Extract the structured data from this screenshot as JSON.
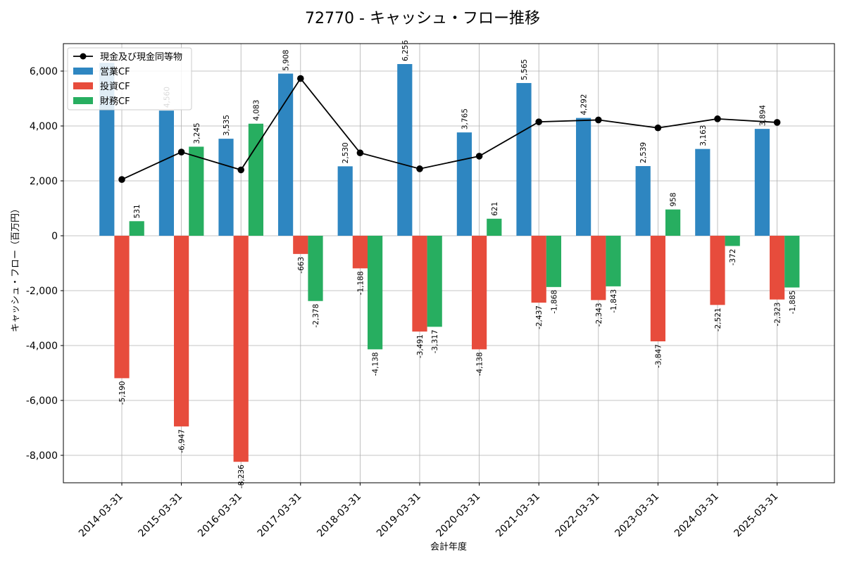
{
  "chart_data": {
    "type": "bar",
    "title": "72770 - キャッシュ・フロー推移",
    "xlabel": "会計年度",
    "ylabel": "キャッシュ・フロー（百万円）",
    "ylim": [
      -9000,
      7000
    ],
    "yticks": [
      6000,
      4000,
      2000,
      0,
      -2000,
      -4000,
      -6000,
      -8000
    ],
    "ytick_labels": [
      "6,000",
      "4,000",
      "2,000",
      "0",
      "-2,000",
      "-4,000",
      "-6,000",
      "-8,000"
    ],
    "grid": true,
    "legend_position": "top-left",
    "categories": [
      "2014-03-31",
      "2015-03-31",
      "2016-03-31",
      "2017-03-31",
      "2018-03-31",
      "2019-03-31",
      "2020-03-31",
      "2021-03-31",
      "2022-03-31",
      "2023-03-31",
      "2024-03-31",
      "2025-03-31"
    ],
    "series": [
      {
        "name": "営業CF",
        "kind": "bar",
        "color": "#2e86c1",
        "values": [
          6300,
          4560,
          3535,
          5908,
          2530,
          6256,
          3765,
          5565,
          4292,
          2539,
          3163,
          3894
        ],
        "labels": [
          "",
          "4,560",
          "3,535",
          "5,908",
          "2,530",
          "6,256",
          "3,765",
          "5,565",
          "4,292",
          "2,539",
          "3,163",
          "3,894"
        ]
      },
      {
        "name": "投資CF",
        "kind": "bar",
        "color": "#e74c3c",
        "values": [
          -5190,
          -6947,
          -8236,
          -663,
          -1188,
          -3491,
          -4138,
          -2437,
          -2343,
          -3847,
          -2521,
          -2323
        ],
        "labels": [
          "-5,190",
          "-6,947",
          "-8,236",
          "-663",
          "-1,188",
          "-3,491",
          "-4,138",
          "-2,437",
          "-2,343",
          "-3,847",
          "-2,521",
          "-2,323"
        ]
      },
      {
        "name": "財務CF",
        "kind": "bar",
        "color": "#27ae60",
        "values": [
          531,
          3245,
          4083,
          -2378,
          -4138,
          -3317,
          621,
          -1868,
          -1843,
          958,
          -372,
          -1885
        ],
        "labels": [
          "531",
          "3,245",
          "4,083",
          "-2,378",
          "-4,138",
          "-3,317",
          "621",
          "-1,868",
          "-1,843",
          "958",
          "-372",
          "-1,885"
        ]
      },
      {
        "name": "現金及び現金同等物",
        "kind": "line",
        "color": "#000000",
        "values": [
          2050,
          3050,
          2400,
          5730,
          3020,
          2440,
          2900,
          4150,
          4220,
          3930,
          4260,
          4130
        ]
      }
    ]
  }
}
